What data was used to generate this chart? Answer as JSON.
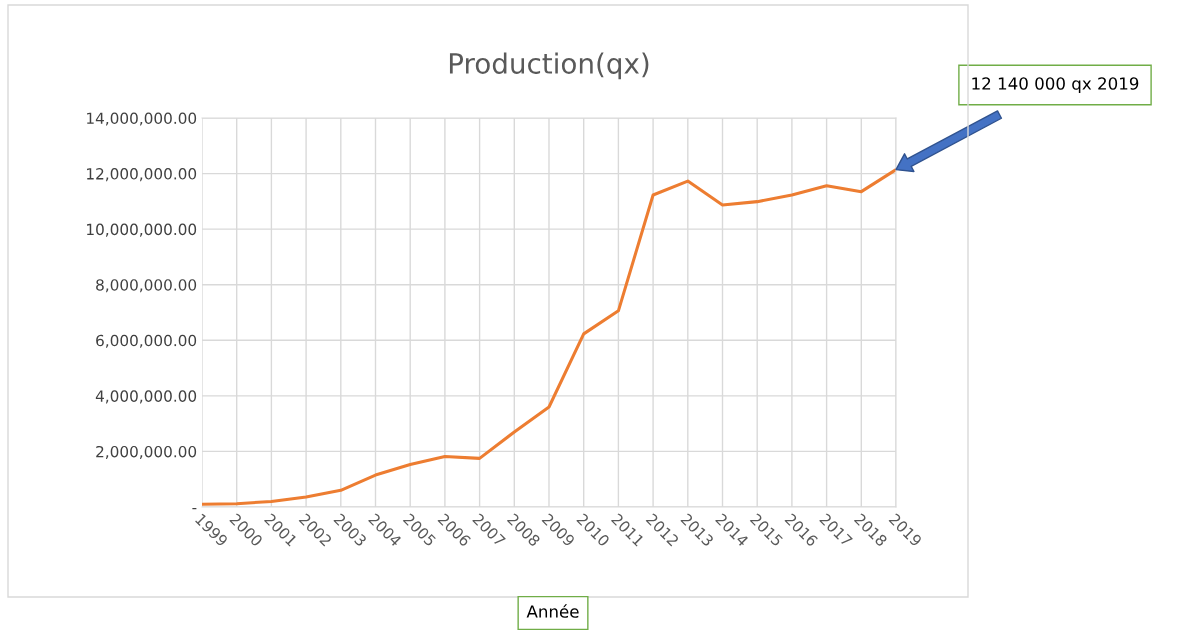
{
  "chart_data": {
    "type": "line",
    "title": "Production(qx)",
    "xlabel": "Année",
    "categories": [
      "1999",
      "2000",
      "2001",
      "2002",
      "2003",
      "2004",
      "2005",
      "2006",
      "2007",
      "2008",
      "2009",
      "2010",
      "2011",
      "2012",
      "2013",
      "2014",
      "2015",
      "2016",
      "2017",
      "2018",
      "2019"
    ],
    "series": [
      {
        "color": "#ed7d31",
        "values": [
          100000,
          120000,
          200000,
          360000,
          600000,
          1150000,
          1530000,
          1820000,
          1750000,
          2700000,
          3600000,
          6230000,
          7060000,
          11230000,
          11730000,
          10870000,
          10990000,
          11230000,
          11560000,
          11350000,
          12140000
        ]
      }
    ],
    "ylim": [
      0,
      14000000
    ],
    "yticks": [
      {
        "value": 0,
        "label": "-"
      },
      {
        "value": 2000000,
        "label": "2,000,000.00"
      },
      {
        "value": 4000000,
        "label": "4,000,000.00"
      },
      {
        "value": 6000000,
        "label": "6,000,000.00"
      },
      {
        "value": 8000000,
        "label": "8,000,000.00"
      },
      {
        "value": 10000000,
        "label": "10,000,000.00"
      },
      {
        "value": 12000000,
        "label": "12,000,000.00"
      },
      {
        "value": 14000000,
        "label": "14,000,000.00"
      }
    ],
    "grid": true,
    "legend": false,
    "marker": "none",
    "line_style": "solid",
    "annotations": [
      "12 140 000 qx 2019"
    ]
  }
}
